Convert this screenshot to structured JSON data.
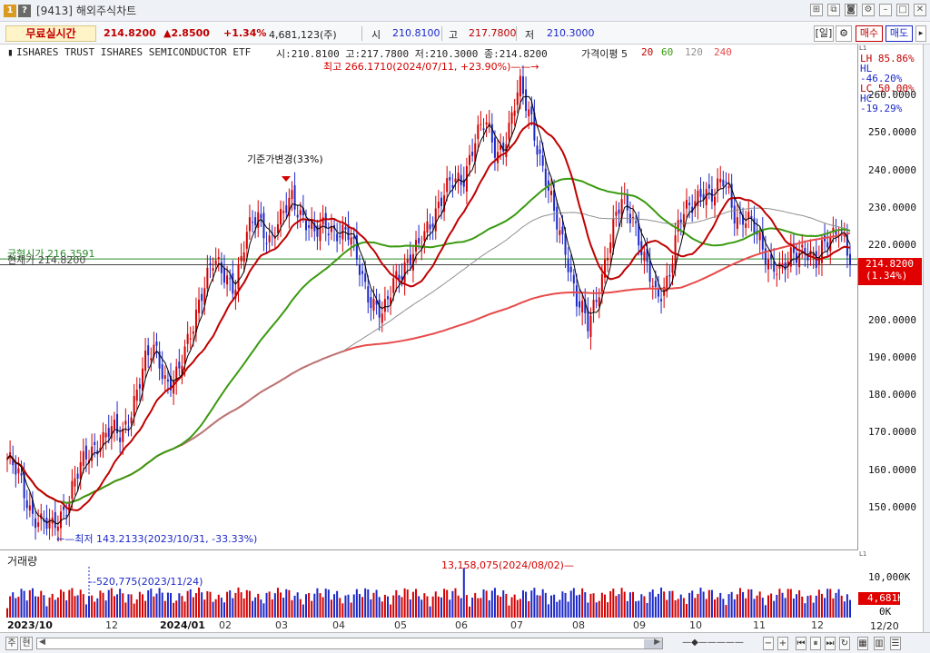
{
  "window": {
    "code": "[9413]",
    "title": "해외주식차트"
  },
  "quote": {
    "mode": "무료실시간",
    "price": "214.8200",
    "change": "▲2.8500",
    "change_pct": "+1.34%",
    "volume": "4,681,123(주)",
    "open_label": "시",
    "open": "210.8100",
    "high_label": "고",
    "high": "217.7800",
    "low_label": "저",
    "low": "210.3000",
    "period": "[일]",
    "buy": "매수",
    "sell": "매도"
  },
  "info": {
    "name": "ISHARES TRUST ISHARES SEMICONDUCTOR ETF",
    "ohlc": "시:210.8100 고:217.7800 저:210.3000 종:214.8200",
    "ma_label": "가격이평 5",
    "ma_20": "20",
    "ma_60": "60",
    "ma_120": "120",
    "ma_240": "240",
    "lh": "LH  85.86%",
    "hl": "HL -46.20%",
    "lc": "LC  50.00%",
    "hc": "HC -19.29%"
  },
  "annotations": {
    "high": "최고 266.1710(2024/07/11, +23.90%)",
    "low": "최저 143.2133(2023/10/31, -33.33%)",
    "split": "기준가변경(33%)",
    "avg_price": "균형시가 216.3591",
    "current_price": "현재가 214.8200",
    "vol_high": "13,158,075(2024/08/02)",
    "vol_mark": "520,775(2023/11/24)",
    "price_tag": "214.8200",
    "price_tag_pct": "(1.34%)",
    "vol_tag": "4,681K"
  },
  "volume_panel": {
    "title": "거래량",
    "ticks": [
      "10,000K",
      "5K",
      "0K"
    ]
  },
  "axis": {
    "price_ticks": [
      "260.0000",
      "250.0000",
      "240.0000",
      "230.0000",
      "220.0000",
      "210.0000",
      "200.0000",
      "190.0000",
      "180.0000",
      "170.0000",
      "160.0000",
      "150.0000"
    ],
    "dates": [
      "2023/10",
      "12",
      "2024/01",
      "02",
      "03",
      "04",
      "05",
      "06",
      "07",
      "08",
      "09",
      "10",
      "11",
      "12"
    ],
    "end_date": "12/20"
  },
  "bottom": {
    "zoom_a": "주",
    "zoom_b": "현"
  },
  "colors": {
    "up": "#d40000",
    "down": "#1c28c8",
    "ma5": "#000000",
    "ma20": "#c00000",
    "ma60": "#3a9a10",
    "ma120": "#909090",
    "ma240": "#e84a4a",
    "avg_line": "#2a8a2a"
  },
  "chart_data": {
    "type": "candlestick",
    "y_range": [
      140,
      270
    ],
    "series": [
      {
        "name": "20",
        "values": []
      },
      {
        "name": "60",
        "values": []
      },
      {
        "name": "120",
        "values": []
      },
      {
        "name": "240",
        "values": []
      }
    ],
    "closes_by_month": {
      "2023/10": [
        163,
        158,
        150,
        146,
        144
      ],
      "2023/11": [
        150,
        158,
        163,
        168,
        171
      ],
      "2023/12": [
        168,
        178,
        188,
        192,
        184
      ],
      "2024/01": [
        185,
        195,
        208,
        215,
        212
      ],
      "2024/02": [
        210,
        222,
        228,
        222,
        226
      ],
      "2024/03": [
        233,
        228,
        222,
        226,
        224
      ],
      "2024/04": [
        222,
        214,
        205,
        200,
        212
      ],
      "2024/05": [
        215,
        218,
        226,
        232,
        236
      ],
      "2024/06": [
        238,
        248,
        252,
        245,
        250
      ],
      "2024/07": [
        262,
        255,
        240,
        228,
        220
      ],
      "2024/08": [
        205,
        198,
        210,
        222,
        232
      ],
      "2024/09": [
        228,
        215,
        205,
        212,
        226
      ],
      "2024/10": [
        230,
        236,
        232,
        238,
        228
      ],
      "2024/11": [
        226,
        222,
        216,
        212,
        218
      ],
      "2024/12": [
        220,
        214,
        222,
        226,
        214.82
      ]
    },
    "volume_peak": 13158075,
    "last_volume": 4681123
  }
}
